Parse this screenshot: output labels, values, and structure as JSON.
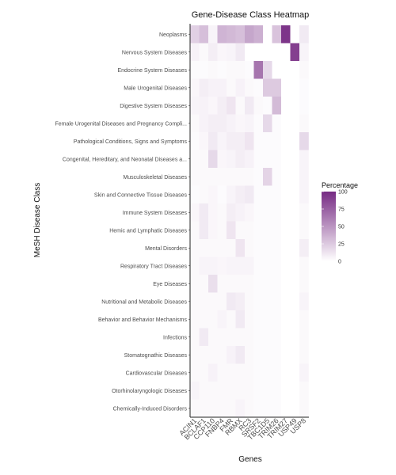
{
  "chart_data": {
    "type": "heatmap",
    "title": "Gene-Disease Class Heatmap",
    "xlabel": "Genes",
    "ylabel": "MeSH Disease Class",
    "x_categories": [
      "ACIN1",
      "BCLAF1",
      "CCP110",
      "FNBP4",
      "FMR",
      "RBMX",
      "RC3",
      "SRSF2",
      "TBC1D5",
      "TRIM26",
      "TRIM27",
      "USP49",
      "USP8"
    ],
    "y_categories": [
      "Neoplasms",
      "Nervous System Diseases",
      "Endocrine System Diseases",
      "Male Urogenital Diseases",
      "Digestive System Diseases",
      "Female Urogenital Diseases and Pregnancy Compli...",
      "Pathological Conditions, Signs and Symptoms",
      "Congenital, Hereditary, and Neonatal Diseases a...",
      "Musculoskeletal Diseases",
      "Skin and Connective Tissue Diseases",
      "Immune System Diseases",
      "Hemic and Lymphatic Diseases",
      "Mental Disorders",
      "Respiratory Tract Diseases",
      "Eye Diseases",
      "Nutritional and Metabolic Diseases",
      "Behavior and Behavior Mechanisms",
      "Infections",
      "Stomatognathic Diseases",
      "Cardiovascular Diseases",
      "Otorhinolaryngologic Diseases",
      "Chemically-Induced Disorders"
    ],
    "values": [
      [
        22,
        30,
        5,
        35,
        33,
        30,
        42,
        37,
        0,
        28,
        95,
        0,
        10
      ],
      [
        6,
        3,
        8,
        4,
        5,
        10,
        0,
        0,
        0,
        0,
        0,
        90,
        5
      ],
      [
        2,
        2,
        3,
        2,
        3,
        3,
        2,
        65,
        18,
        0,
        0,
        0,
        3
      ],
      [
        4,
        8,
        6,
        6,
        3,
        6,
        3,
        2,
        25,
        25,
        0,
        0,
        2
      ],
      [
        5,
        6,
        4,
        8,
        12,
        3,
        10,
        3,
        2,
        32,
        0,
        0,
        2
      ],
      [
        3,
        6,
        8,
        8,
        6,
        4,
        5,
        2,
        18,
        2,
        0,
        0,
        3
      ],
      [
        2,
        4,
        10,
        5,
        8,
        8,
        12,
        2,
        2,
        2,
        0,
        0,
        18
      ],
      [
        3,
        3,
        18,
        4,
        5,
        8,
        6,
        2,
        2,
        2,
        0,
        0,
        5
      ],
      [
        3,
        3,
        3,
        3,
        3,
        3,
        3,
        2,
        20,
        2,
        0,
        0,
        5
      ],
      [
        2,
        3,
        4,
        2,
        5,
        8,
        10,
        2,
        2,
        2,
        0,
        0,
        5
      ],
      [
        4,
        10,
        4,
        3,
        8,
        6,
        4,
        2,
        2,
        2,
        0,
        0,
        3
      ],
      [
        3,
        10,
        4,
        3,
        12,
        3,
        3,
        2,
        2,
        2,
        0,
        0,
        3
      ],
      [
        3,
        3,
        3,
        3,
        3,
        12,
        3,
        2,
        2,
        2,
        0,
        0,
        8
      ],
      [
        3,
        5,
        5,
        4,
        5,
        5,
        5,
        2,
        2,
        2,
        0,
        0,
        3
      ],
      [
        3,
        3,
        15,
        3,
        3,
        3,
        3,
        2,
        2,
        2,
        0,
        0,
        3
      ],
      [
        3,
        3,
        3,
        3,
        10,
        8,
        3,
        2,
        2,
        2,
        0,
        0,
        5
      ],
      [
        3,
        3,
        3,
        5,
        3,
        10,
        3,
        2,
        2,
        2,
        0,
        0,
        3
      ],
      [
        3,
        10,
        3,
        3,
        3,
        3,
        3,
        2,
        2,
        2,
        0,
        0,
        3
      ],
      [
        3,
        3,
        3,
        3,
        6,
        10,
        3,
        2,
        2,
        2,
        0,
        0,
        3
      ],
      [
        3,
        3,
        6,
        3,
        3,
        3,
        3,
        2,
        2,
        2,
        0,
        0,
        5
      ],
      [
        5,
        3,
        3,
        3,
        3,
        3,
        3,
        2,
        2,
        2,
        0,
        0,
        3
      ],
      [
        3,
        3,
        3,
        3,
        3,
        5,
        3,
        2,
        2,
        2,
        0,
        0,
        3
      ]
    ],
    "legend": {
      "title": "Percentage",
      "ticks": [
        0,
        25,
        50,
        75,
        100
      ],
      "position": "right",
      "color_low": "#ffffff",
      "color_high": "#762a83"
    },
    "range": [
      0,
      100
    ],
    "grid": false
  }
}
